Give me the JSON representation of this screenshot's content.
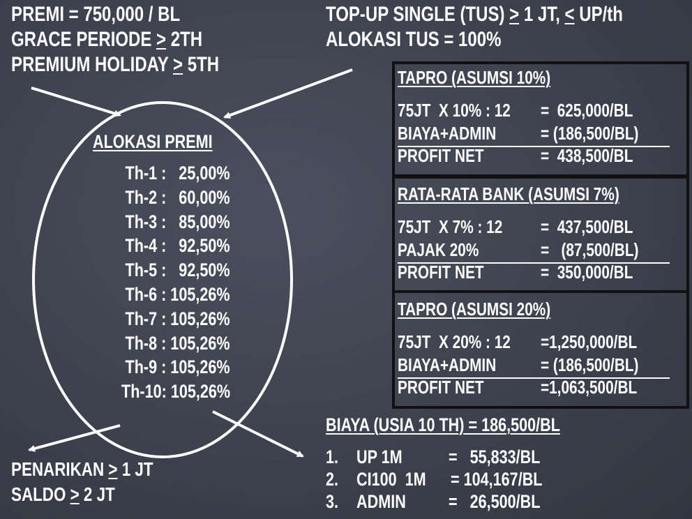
{
  "top_left": {
    "line1": "PREMI = 750,000 / BL",
    "line2": {
      "prefix": "GRACE PERIODE ",
      "symbol": ">",
      "suffix": " 2TH"
    },
    "line3": {
      "prefix": "PREMIUM HOLIDAY ",
      "symbol": ">",
      "suffix": " 5TH"
    }
  },
  "top_right": {
    "line1": {
      "prefix": "TOP-UP SINGLE (TUS) ",
      "symbol1": ">",
      "middle": " 1 JT, ",
      "symbol2": "<",
      "suffix": " UP/th"
    },
    "line2": "ALOKASI TUS = 100%"
  },
  "alokasi": {
    "title": "ALOKASI PREMI",
    "rows": [
      "Th-1 :   25,00%",
      "Th-2 :   60,00%",
      "Th-3 :   85,00%",
      "Th-4 :   92,50%",
      "Th-5 :   92,50%",
      "Th-6 : 105,26%",
      "Th-7 : 105,26%",
      "Th-8 : 105,26%",
      "Th-9 : 105,26%",
      "Th-10: 105,26%"
    ]
  },
  "panels": [
    {
      "title": "TAPRO (ASUMSI 10%)",
      "rows": [
        {
          "label": "75JT  X 10% : 12",
          "value": "=  625,000/BL"
        },
        {
          "label": "BIAYA+ADMIN",
          "value": "= (186,500/BL)"
        },
        {
          "label": "PROFIT NET",
          "value": "=  438,500/BL"
        }
      ]
    },
    {
      "title": "RATA-RATA BANK (ASUMSI 7%)",
      "rows": [
        {
          "label": "75JT  X 7% : 12",
          "value": "=  437,500/BL"
        },
        {
          "label": "PAJAK 20%",
          "value": "=   (87,500/BL)"
        },
        {
          "label": "PROFIT NET",
          "value": "=  350,000/BL"
        }
      ]
    },
    {
      "title": "TAPRO (ASUMSI 20%)",
      "rows": [
        {
          "label": "75JT  X 20% : 12",
          "value": "=1,250,000/BL"
        },
        {
          "label": "BIAYA+ADMIN",
          "value": "= (186,500/BL)"
        },
        {
          "label": "PROFIT NET",
          "value": "=1,063,500/BL"
        }
      ]
    }
  ],
  "biaya": {
    "title": "BIAYA (USIA 10 TH) = 186,500/BL",
    "items": [
      {
        "num": "1.",
        "label": "UP 1M",
        "value": "=   55,833/BL"
      },
      {
        "num": "2.",
        "label": "CI100  1M",
        "value": "= 104,167/BL"
      },
      {
        "num": "3.",
        "label": "ADMIN",
        "value": "=   26,500/BL"
      }
    ]
  },
  "bottom_left": {
    "line1": {
      "prefix": "PENARIKAN ",
      "symbol": ">",
      "suffix": " 1 JT"
    },
    "line2": {
      "prefix": "SALDO ",
      "symbol": ">",
      "suffix": " 2 JT"
    }
  },
  "colors": {
    "background": "#3d424e",
    "text": "#ffffff",
    "panel_border": "#111111"
  }
}
